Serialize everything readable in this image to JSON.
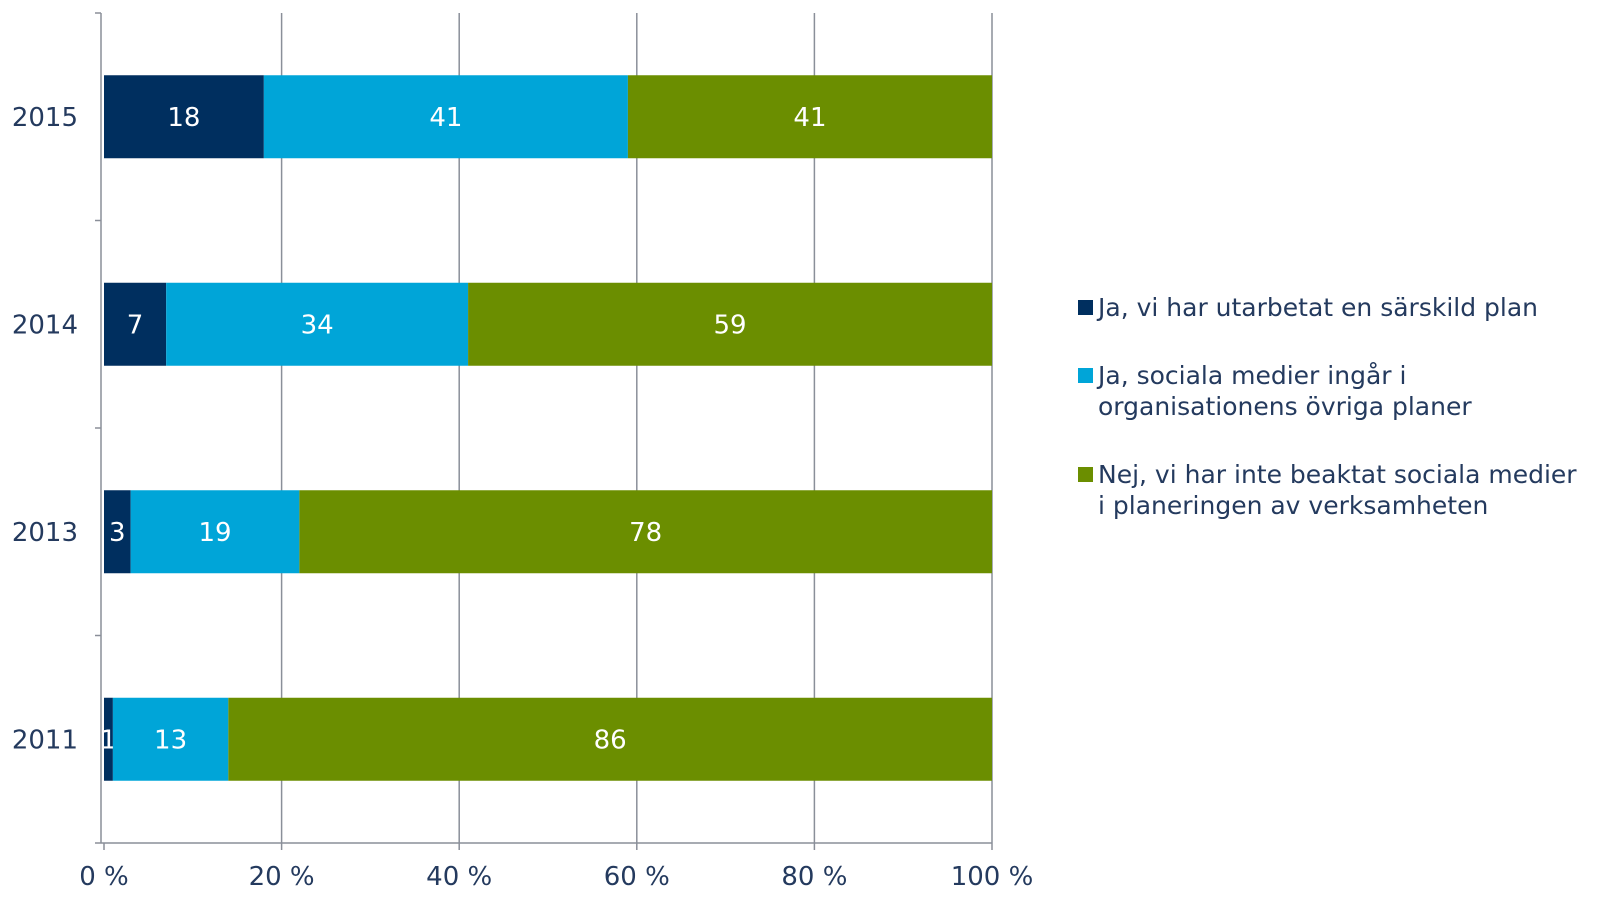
{
  "chart_data": {
    "type": "bar",
    "orientation": "horizontal",
    "stacked": true,
    "categories": [
      "2015",
      "2014",
      "2013",
      "2011"
    ],
    "series": [
      {
        "name": "Ja, vi har utarbetat en särskild plan",
        "color": "#002f5f",
        "values": [
          18,
          7,
          3,
          1
        ]
      },
      {
        "name": "Ja, sociala medier ingår i organisationens övriga planer",
        "color": "#00a5d8",
        "values": [
          41,
          34,
          19,
          13
        ]
      },
      {
        "name": "Nej, vi har inte beaktat sociala medier i planeringen av verksamheten",
        "color": "#6b8e00",
        "values": [
          41,
          59,
          78,
          86
        ]
      }
    ],
    "data_labels": [
      [
        "18",
        "41",
        "41"
      ],
      [
        "7",
        "34",
        "59"
      ],
      [
        "3",
        "19",
        "78"
      ],
      [
        "1",
        "13",
        "86"
      ]
    ],
    "x_ticks": [
      "0 %",
      "20 %",
      "40 %",
      "60 %",
      "80 %",
      "100 %"
    ],
    "xlim": [
      0,
      100
    ],
    "grid": true,
    "legend_position": "right"
  }
}
